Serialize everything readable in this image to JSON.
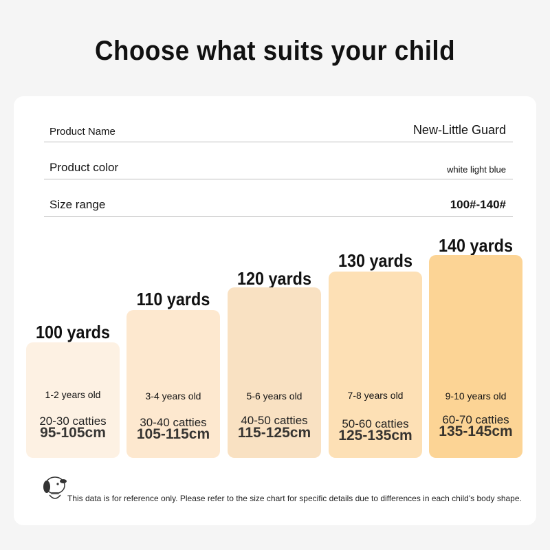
{
  "title": "Choose what suits your child",
  "info": {
    "product_name_label": "Product Name",
    "product_name_value": "New-Little Guard",
    "product_color_label": "Product color",
    "product_color_value": "white light blue",
    "size_range_label": "Size range",
    "size_range_value": "100#-140#"
  },
  "sizes": [
    {
      "yards": "100 yards",
      "age": "1-2 years old",
      "height": "95-105cm",
      "weight": "20-30 catties",
      "color": "#fdf1e3"
    },
    {
      "yards": "110 yards",
      "age": "3-4 years old",
      "height": "105-115cm",
      "weight": "30-40 catties",
      "color": "#fde8cf"
    },
    {
      "yards": "120 yards",
      "age": "5-6 years old",
      "height": "115-125cm",
      "weight": "40-50 catties",
      "color": "#f9e1c2"
    },
    {
      "yards": "130 yards",
      "age": "7-8 years old",
      "height": "125-135cm",
      "weight": "50-60 catties",
      "color": "#fde0b5"
    },
    {
      "yards": "140 yards",
      "age": "9-10 years old",
      "height": "135-145cm",
      "weight": "60-70 catties",
      "color": "#fcd495"
    }
  ],
  "note": "This data is for reference only. Please refer to the size chart for specific details due to differences in each child's body shape.",
  "icons": {
    "mascot": "dog-mascot-icon"
  }
}
